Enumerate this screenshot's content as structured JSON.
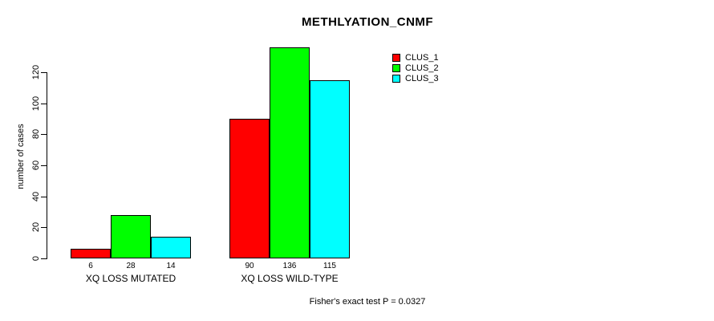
{
  "chart_data": {
    "type": "bar",
    "title": "METHLYATION_CNMF",
    "xlabel": "",
    "ylabel": "number of cases",
    "categories": [
      "XQ LOSS MUTATED",
      "XQ LOSS WILD-TYPE"
    ],
    "series": [
      {
        "name": "CLUS_1",
        "color": "#ff0000",
        "values": [
          6,
          90
        ]
      },
      {
        "name": "CLUS_2",
        "color": "#00ff00",
        "values": [
          28,
          136
        ]
      },
      {
        "name": "CLUS_3",
        "color": "#00ffff",
        "values": [
          14,
          115
        ]
      }
    ],
    "bar_value_labels": [
      [
        "6",
        "28",
        "14"
      ],
      [
        "90",
        "136",
        "115"
      ]
    ],
    "yticks": [
      0,
      20,
      40,
      60,
      80,
      100,
      120
    ],
    "ylim": [
      0,
      136
    ],
    "grid": false,
    "legend_position": "top-right",
    "annotation": "Fisher's exact test P = 0.0327"
  }
}
